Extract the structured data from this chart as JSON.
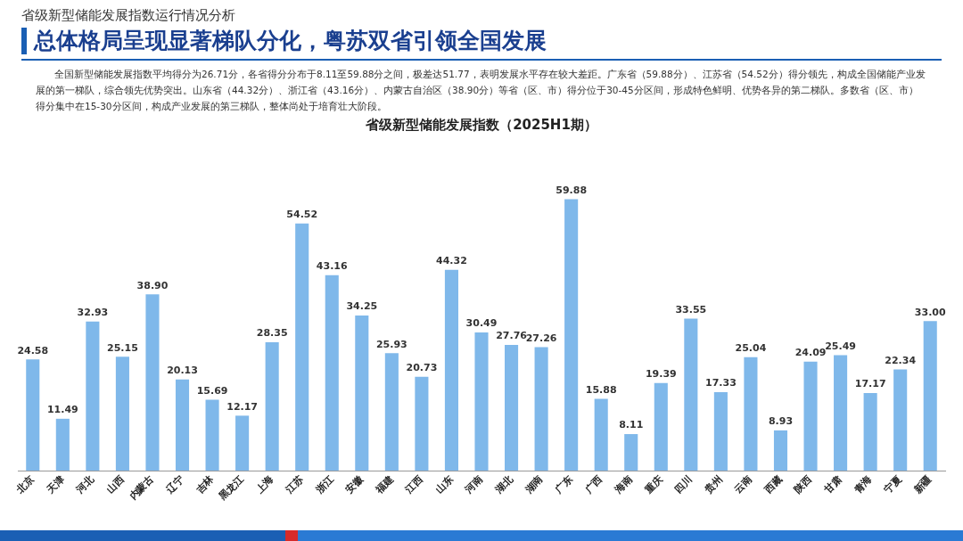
{
  "chart_data": {
    "type": "bar",
    "title": "省级新型储能发展指数（2025H1期）",
    "annotations": [
      "省级新型储能发展指数运行情况分析",
      "总体格局呈现显著梯队分化，粤苏双省引领全国发展",
      "全国新型储能发展指数平均得分为26.71分，各省得分分布于8.11至59.88分之间，极差达51.77，表明发展水平存在较大差距。广东省（59.88分）、江苏省（54.52分）得分领先，构成全国储能产业发展的第一梯队，综合领先优势突出。山东省（44.32分）、浙江省（43.16分）、内蒙古自治区（38.90分）等省（区、市）得分位于30-45分区间，形成特色鲜明、优势各异的第二梯队。多数省（区、市）得分集中在15-30分区间，构成产业发展的第三梯队，整体尚处于培育壮大阶段。"
    ],
    "categories": [
      "北京",
      "天津",
      "河北",
      "山西",
      "内蒙古",
      "辽宁",
      "吉林",
      "黑龙江",
      "上海",
      "江苏",
      "浙江",
      "安徽",
      "福建",
      "江西",
      "山东",
      "河南",
      "湖北",
      "湖南",
      "广东",
      "广西",
      "海南",
      "重庆",
      "四川",
      "贵州",
      "云南",
      "西藏",
      "陕西",
      "甘肃",
      "青海",
      "宁夏",
      "新疆"
    ],
    "values": [
      24.58,
      11.49,
      32.93,
      25.15,
      38.9,
      20.13,
      15.69,
      12.17,
      28.35,
      54.52,
      43.16,
      34.25,
      25.93,
      20.73,
      44.32,
      30.49,
      27.76,
      27.26,
      59.88,
      15.88,
      8.11,
      19.39,
      33.55,
      17.33,
      25.04,
      8.93,
      24.09,
      25.49,
      17.17,
      22.34,
      33.0
    ],
    "value_labels": [
      "24.58",
      "11.49",
      "32.93",
      "25.15",
      "38.90",
      "20.13",
      "15.69",
      "12.17",
      "28.35",
      "54.52",
      "43.16",
      "34.25",
      "25.93",
      "20.73",
      "44.32",
      "30.49",
      "27.76",
      "27.26",
      "59.88",
      "15.88",
      "8.11",
      "19.39",
      "33.55",
      "17.33",
      "25.04",
      "8.93",
      "24.09",
      "25.49",
      "17.17",
      "22.34",
      "33.00"
    ],
    "color": "#7fb8ea",
    "grid": false,
    "legend": false
  }
}
